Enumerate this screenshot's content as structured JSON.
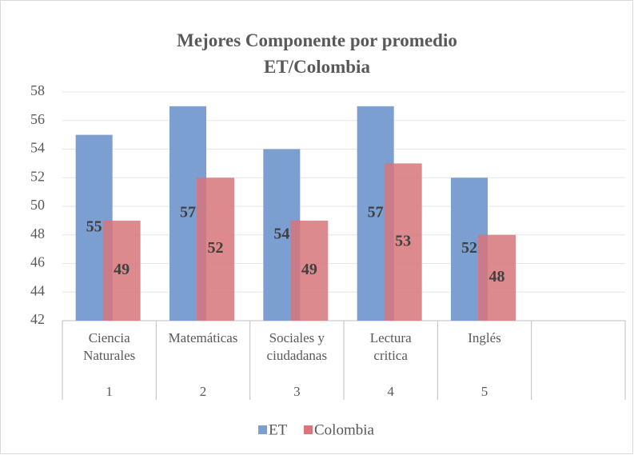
{
  "chart_data": {
    "type": "bar",
    "title": "Mejores Componente por promedio\nET/Colombia",
    "categories": [
      "Ciencia\nNaturales",
      "Matemáticas",
      "Sociales y\nciudadanas",
      "Lectura\ncritica",
      "Inglés",
      null
    ],
    "category_groups": [
      "1",
      "2",
      "3",
      "4",
      "5",
      null
    ],
    "series": [
      {
        "name": "ET",
        "color": "#7a9fd0",
        "values": [
          55,
          57,
          54,
          57,
          52,
          null
        ]
      },
      {
        "name": "Colombia",
        "color": "#d7767b",
        "values": [
          49,
          52,
          49,
          53,
          48,
          null
        ]
      }
    ],
    "ylim": [
      42,
      58
    ],
    "yticks": [
      42,
      44,
      46,
      48,
      50,
      52,
      54,
      56,
      58
    ],
    "grid": true,
    "legend": "bottom"
  }
}
